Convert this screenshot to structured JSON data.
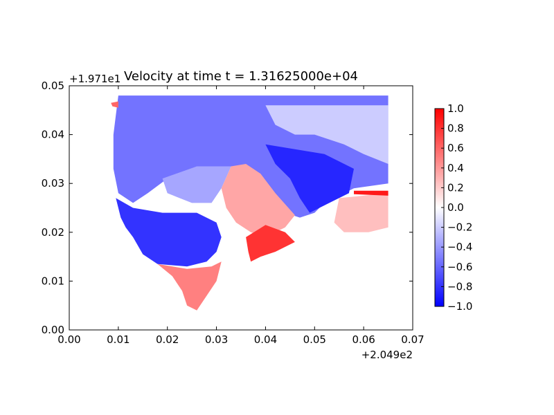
{
  "chart_data": {
    "type": "heatmap",
    "title": "Velocity at time t = 1.31625000e+04",
    "x_offset_label": "+2.049e2",
    "y_offset_label": "+1.971e1",
    "xlim": [
      0.0,
      0.07
    ],
    "ylim": [
      0.0,
      0.05
    ],
    "x_ticks": [
      "0.00",
      "0.01",
      "0.02",
      "0.03",
      "0.04",
      "0.05",
      "0.06",
      "0.07"
    ],
    "y_ticks": [
      "0.00",
      "0.01",
      "0.02",
      "0.03",
      "0.04",
      "0.05"
    ],
    "colorbar": {
      "colormap": "bwr",
      "range": [
        -1.0,
        1.0
      ],
      "ticks": [
        "1.0",
        "0.8",
        "0.6",
        "0.4",
        "0.2",
        "0.0",
        "−0.2",
        "−0.4",
        "−0.6",
        "−0.8",
        "−1.0"
      ]
    },
    "colors": {
      "low": "#0000ff",
      "mid": "#ffffff",
      "high": "#ff0000"
    },
    "regions": [
      {
        "value": -0.55,
        "polygon": [
          [
            0.01,
            0.048
          ],
          [
            0.065,
            0.048
          ],
          [
            0.065,
            0.03
          ],
          [
            0.058,
            0.029
          ],
          [
            0.052,
            0.026
          ],
          [
            0.05,
            0.024
          ],
          [
            0.047,
            0.023
          ],
          [
            0.044,
            0.024
          ],
          [
            0.04,
            0.029
          ],
          [
            0.037,
            0.033
          ],
          [
            0.033,
            0.0335
          ],
          [
            0.025,
            0.033
          ],
          [
            0.02,
            0.031
          ],
          [
            0.016,
            0.028
          ],
          [
            0.013,
            0.026
          ],
          [
            0.01,
            0.028
          ],
          [
            0.009,
            0.033
          ],
          [
            0.009,
            0.04
          ],
          [
            0.0095,
            0.044
          ]
        ]
      },
      {
        "value": -0.2,
        "polygon": [
          [
            0.04,
            0.046
          ],
          [
            0.065,
            0.046
          ],
          [
            0.065,
            0.034
          ],
          [
            0.06,
            0.036
          ],
          [
            0.056,
            0.038
          ],
          [
            0.05,
            0.04
          ],
          [
            0.046,
            0.04
          ],
          [
            0.042,
            0.042
          ]
        ]
      },
      {
        "value": -0.85,
        "polygon": [
          [
            0.04,
            0.038
          ],
          [
            0.052,
            0.036
          ],
          [
            0.058,
            0.033
          ],
          [
            0.057,
            0.028
          ],
          [
            0.053,
            0.026
          ],
          [
            0.049,
            0.024
          ],
          [
            0.047,
            0.027
          ],
          [
            0.045,
            0.031
          ],
          [
            0.042,
            0.034
          ]
        ]
      },
      {
        "value": -0.8,
        "polygon": [
          [
            0.0095,
            0.027
          ],
          [
            0.013,
            0.025
          ],
          [
            0.019,
            0.024
          ],
          [
            0.026,
            0.024
          ],
          [
            0.03,
            0.022
          ],
          [
            0.031,
            0.019
          ],
          [
            0.03,
            0.016
          ],
          [
            0.028,
            0.014
          ],
          [
            0.024,
            0.013
          ],
          [
            0.018,
            0.0135
          ],
          [
            0.015,
            0.0155
          ],
          [
            0.013,
            0.019
          ],
          [
            0.0115,
            0.021
          ],
          [
            0.0105,
            0.023
          ]
        ]
      },
      {
        "value": -0.35,
        "polygon": [
          [
            0.019,
            0.031
          ],
          [
            0.026,
            0.0335
          ],
          [
            0.033,
            0.0335
          ],
          [
            0.031,
            0.029
          ],
          [
            0.029,
            0.026
          ],
          [
            0.025,
            0.026
          ],
          [
            0.02,
            0.028
          ]
        ]
      },
      {
        "value": 0.35,
        "polygon": [
          [
            0.033,
            0.0335
          ],
          [
            0.036,
            0.034
          ],
          [
            0.039,
            0.032
          ],
          [
            0.042,
            0.028
          ],
          [
            0.046,
            0.0235
          ],
          [
            0.044,
            0.021
          ],
          [
            0.04,
            0.019
          ],
          [
            0.037,
            0.02
          ],
          [
            0.034,
            0.022
          ],
          [
            0.032,
            0.025
          ],
          [
            0.031,
            0.029
          ]
        ]
      },
      {
        "value": 0.8,
        "polygon": [
          [
            0.036,
            0.019
          ],
          [
            0.04,
            0.0215
          ],
          [
            0.044,
            0.02
          ],
          [
            0.046,
            0.018
          ],
          [
            0.042,
            0.016
          ],
          [
            0.039,
            0.015
          ],
          [
            0.037,
            0.014
          ],
          [
            0.0365,
            0.016
          ]
        ]
      },
      {
        "value": 0.5,
        "polygon": [
          [
            0.018,
            0.0135
          ],
          [
            0.024,
            0.0125
          ],
          [
            0.029,
            0.013
          ],
          [
            0.031,
            0.014
          ],
          [
            0.03,
            0.01
          ],
          [
            0.028,
            0.007
          ],
          [
            0.026,
            0.004
          ],
          [
            0.024,
            0.005
          ],
          [
            0.023,
            0.008
          ],
          [
            0.021,
            0.011
          ]
        ]
      },
      {
        "value": 0.25,
        "polygon": [
          [
            0.055,
            0.027
          ],
          [
            0.065,
            0.028
          ],
          [
            0.065,
            0.021
          ],
          [
            0.061,
            0.02
          ],
          [
            0.056,
            0.02
          ],
          [
            0.054,
            0.022
          ]
        ]
      },
      {
        "value": 0.9,
        "polygon": [
          [
            0.058,
            0.0285
          ],
          [
            0.065,
            0.0285
          ],
          [
            0.065,
            0.0275
          ],
          [
            0.058,
            0.0278
          ]
        ]
      },
      {
        "value": 0.6,
        "polygon": [
          [
            0.0085,
            0.0465
          ],
          [
            0.01,
            0.0468
          ],
          [
            0.01,
            0.0455
          ],
          [
            0.0088,
            0.0458
          ]
        ]
      }
    ]
  }
}
